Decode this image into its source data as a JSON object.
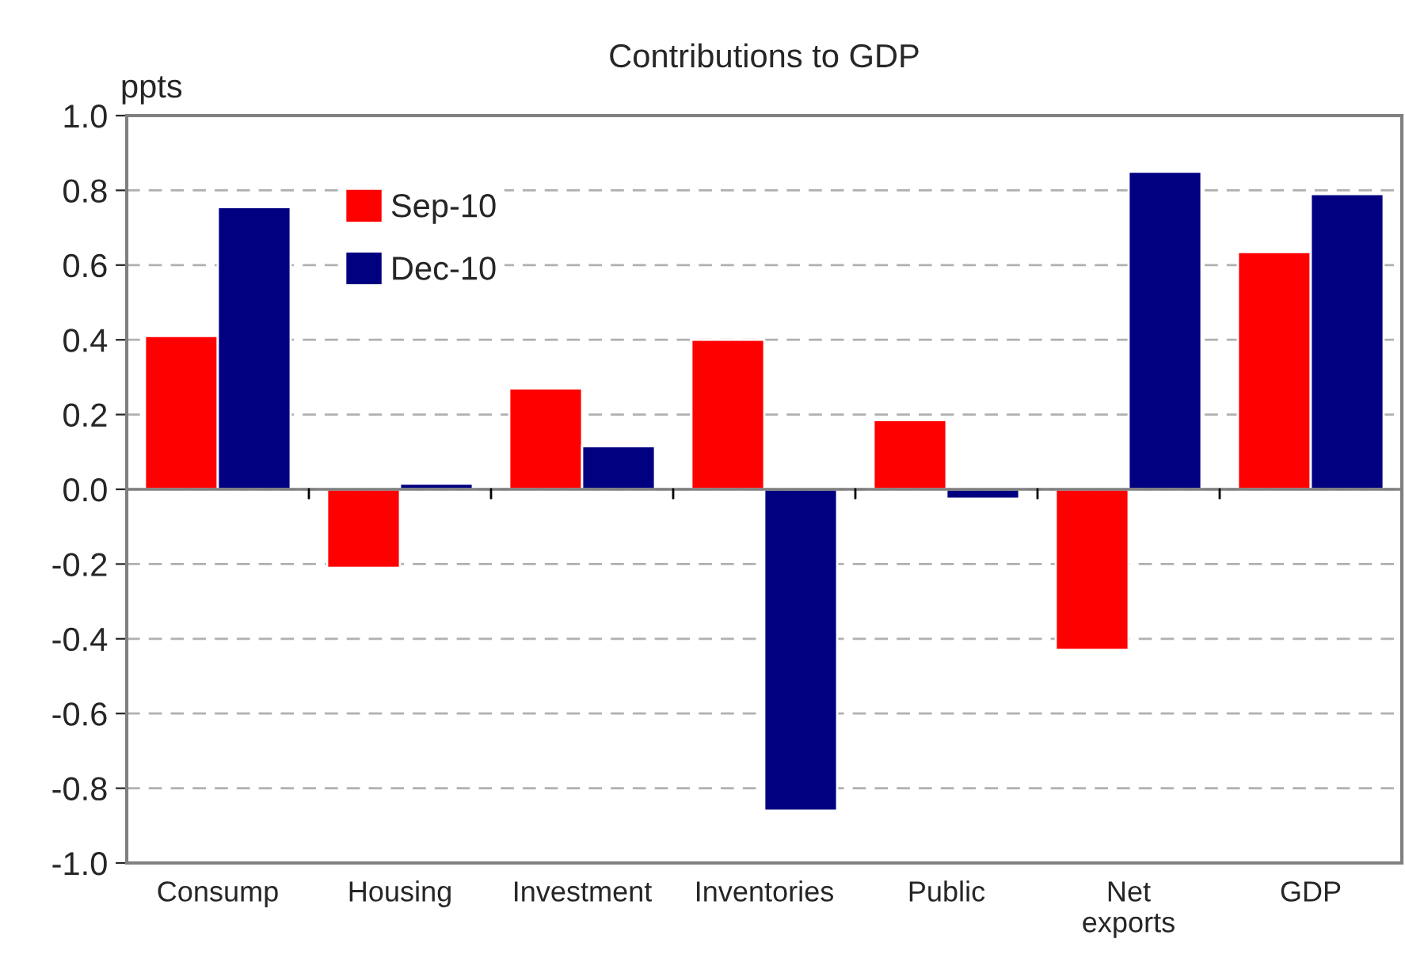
{
  "chart_data": {
    "type": "bar",
    "title": "Contributions to GDP",
    "ylabel": "ppts",
    "categories": [
      "Consump",
      "Housing",
      "Investment",
      "Inventories",
      "Public",
      "Net\nexports",
      "GDP"
    ],
    "series": [
      {
        "name": "Sep-10",
        "color": "#ff0000",
        "values": [
          0.41,
          -0.21,
          0.27,
          0.4,
          0.185,
          -0.43,
          0.635
        ]
      },
      {
        "name": "Dec-10",
        "color": "#000080",
        "values": [
          0.755,
          0.015,
          0.115,
          -0.86,
          -0.025,
          0.85,
          0.79
        ]
      }
    ],
    "ylim": [
      -1.0,
      1.0
    ],
    "yticks": [
      {
        "value": -1.0,
        "label": "-1.0"
      },
      {
        "value": -0.8,
        "label": "-0.8"
      },
      {
        "value": -0.6,
        "label": "-0.6"
      },
      {
        "value": -0.4,
        "label": "-0.4"
      },
      {
        "value": -0.2,
        "label": "-0.2"
      },
      {
        "value": 0,
        "label": "0.0"
      },
      {
        "value": 0.2,
        "label": "0.2"
      },
      {
        "value": 0.4,
        "label": "0.4"
      },
      {
        "value": 0.6,
        "label": "0.6"
      },
      {
        "value": 0.8,
        "label": "0.8"
      },
      {
        "value": 1.0,
        "label": "1.0"
      }
    ],
    "grid": "y",
    "legend": "top left"
  }
}
